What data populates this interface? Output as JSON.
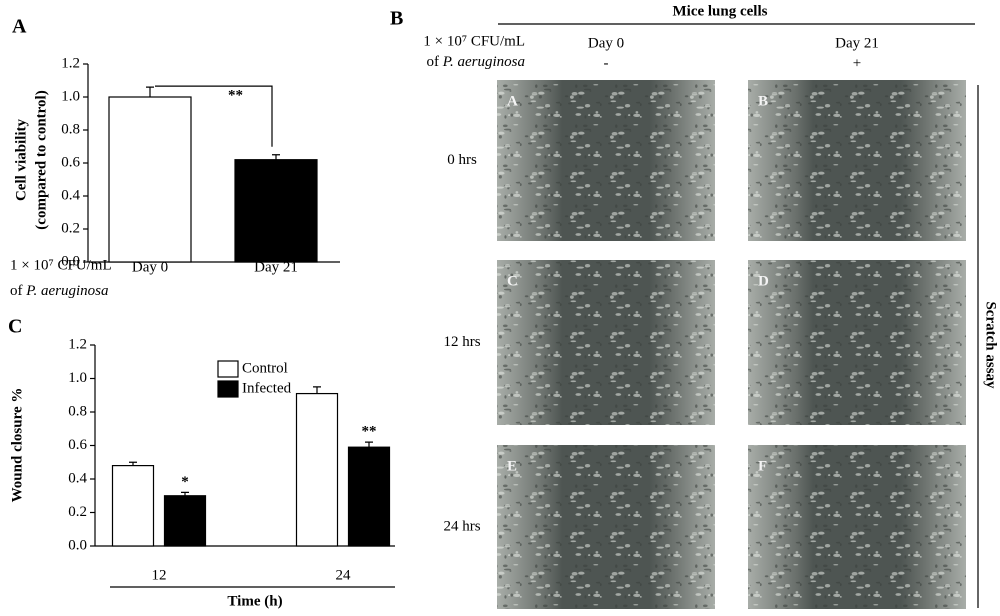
{
  "chart_data": [
    {
      "type": "bar",
      "panel_label": "A",
      "ylabel": [
        "Cell viability",
        "(compared to control)"
      ],
      "categories": [
        "Day 0",
        "Day 21"
      ],
      "values": [
        1.0,
        0.62
      ],
      "errors": [
        0.06,
        0.03
      ],
      "colors": [
        "#ffffff",
        "#000000"
      ],
      "ylim": [
        0,
        1.2
      ],
      "yticks": [
        {
          "value": 0,
          "label": "0.0"
        },
        0.2,
        0.4,
        0.6,
        0.8,
        {
          "value": 1,
          "label": "1.0"
        },
        1.2
      ],
      "annotations": [
        "**"
      ],
      "x_caption": {
        "line1": "1 × 10⁷ CFU/mL",
        "prefix": "of",
        "species": "P. aeruginosa"
      }
    },
    {
      "type": "grouped_bar",
      "panel_label": "C",
      "ylabel": "Wound closure %",
      "xlabel": "Time (h)",
      "categories": [
        "12",
        "24"
      ],
      "series": [
        {
          "name": "Control",
          "color": "#ffffff",
          "values": [
            0.48,
            0.91
          ],
          "errors": [
            0.02,
            0.04
          ]
        },
        {
          "name": "Infected",
          "color": "#000000",
          "values": [
            0.3,
            0.59
          ],
          "errors": [
            0.02,
            0.03
          ],
          "annotations": [
            "*",
            "**"
          ]
        }
      ],
      "ylim": [
        0,
        1.2
      ],
      "yticks": [
        {
          "value": 0,
          "label": "0.0"
        },
        0.2,
        0.4,
        0.6,
        0.8,
        {
          "value": 1,
          "label": "1.0"
        },
        1.2
      ]
    }
  ],
  "panel_b": {
    "panel_label": "B",
    "title": "Mice lung cells",
    "cfu_label": {
      "line1": "1 × 10⁷ CFU/mL",
      "prefix": "of",
      "species": "P. aeruginosa"
    },
    "columns": [
      {
        "label": "Day 0",
        "sign": "-"
      },
      {
        "label": "Day 21",
        "sign": "+"
      }
    ],
    "rows": [
      "0 hrs",
      "12 hrs",
      "24 hrs"
    ],
    "image_labels": [
      "A",
      "B",
      "C",
      "D",
      "E",
      "F"
    ],
    "side_label": "Scratch assay"
  }
}
